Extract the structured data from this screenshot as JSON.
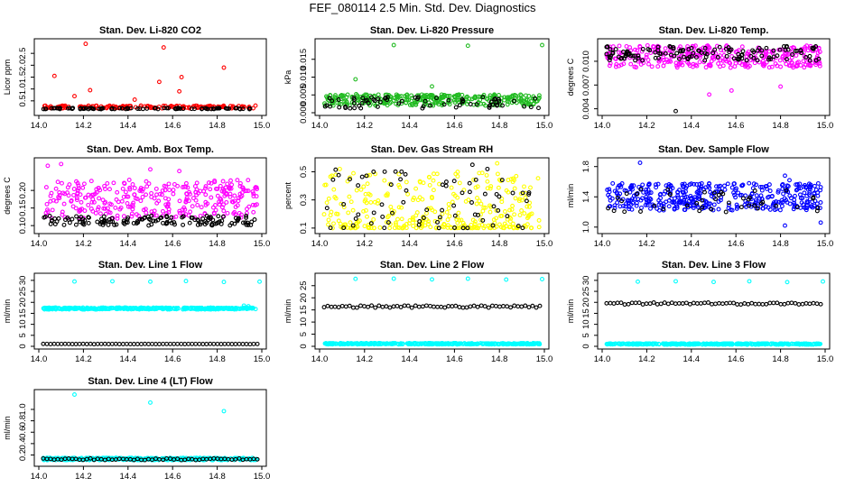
{
  "title": "FEF_080114  2.5 Min. Std. Dev. Diagnostics",
  "colors": {
    "instrument": "#000000",
    "red": "#ff0000",
    "green": "#22bb22",
    "magenta": "#ff00ff",
    "yellow": "#ffff00",
    "blue": "#0000ff",
    "cyan": "#00ffff"
  },
  "chart_data": [
    {
      "type": "scatter",
      "title": "Stan. Dev. Li-820 CO2",
      "ylabel": "Licor ppm",
      "xlim": [
        14.0,
        15.0
      ],
      "ylim": [
        0.0,
        3.0
      ],
      "xticks": [
        "14.0",
        "14.2",
        "14.4",
        "14.6",
        "14.8",
        "15.0"
      ],
      "yticks": [
        {
          "v": 0.5,
          "label": "0.5"
        },
        {
          "v": 1.0,
          "label": "1.0"
        },
        {
          "v": 1.5,
          "label": "1.5"
        },
        {
          "v": 2.0,
          "label": "2.0"
        },
        {
          "v": 2.5,
          "label": "2.5"
        }
      ],
      "series": [
        {
          "name": "primary",
          "color": "#ff0000",
          "n": 160,
          "base": 0.18,
          "spread": 0.12,
          "seed": 11,
          "outliers": [
            [
              14.21,
              2.9
            ],
            [
              14.56,
              2.75
            ],
            [
              14.83,
              1.9
            ],
            [
              14.07,
              1.55
            ],
            [
              14.54,
              1.3
            ],
            [
              14.64,
              1.5
            ],
            [
              14.63,
              0.9
            ],
            [
              14.23,
              0.95
            ],
            [
              14.16,
              0.7
            ],
            [
              14.43,
              0.55
            ]
          ]
        },
        {
          "name": "secondary",
          "color": "#000000",
          "n": 90,
          "base": 0.15,
          "spread": 0.05,
          "seed": 12
        }
      ]
    },
    {
      "type": "scatter",
      "title": "Stan. Dev. Li-820 Pressure",
      "ylabel": "kPa",
      "xlim": [
        14.0,
        15.0
      ],
      "ylim": [
        0.0,
        0.02
      ],
      "xticks": [
        "14.0",
        "14.2",
        "14.4",
        "14.6",
        "14.8",
        "15.0"
      ],
      "yticks": [
        {
          "v": 0.0,
          "label": "0.000"
        },
        {
          "v": 0.005,
          "label": "0.005"
        },
        {
          "v": 0.01,
          "label": "0.010"
        },
        {
          "v": 0.015,
          "label": "0.015"
        }
      ],
      "series": [
        {
          "name": "primary",
          "color": "#22bb22",
          "n": 330,
          "base": 0.002,
          "spread": 0.0032,
          "seed": 21,
          "outliers": [
            [
              14.33,
              0.019
            ],
            [
              14.66,
              0.0188
            ],
            [
              14.99,
              0.019
            ],
            [
              14.16,
              0.0094
            ],
            [
              14.5,
              0.0074
            ]
          ]
        },
        {
          "name": "secondary",
          "color": "#000000",
          "n": 70,
          "base": 0.0012,
          "spread": 0.0032,
          "seed": 22
        }
      ]
    },
    {
      "type": "scatter",
      "title": "Stan. Dev. Li-820 Temp.",
      "ylabel": "degrees C",
      "xlim": [
        14.0,
        15.0
      ],
      "ylim": [
        0.0035,
        0.0125
      ],
      "xticks": [
        "14.0",
        "14.2",
        "14.4",
        "14.6",
        "14.8",
        "15.0"
      ],
      "yticks": [
        {
          "v": 0.004,
          "label": "0.004"
        },
        {
          "v": 0.007,
          "label": "0.007"
        },
        {
          "v": 0.01,
          "label": "0.010"
        }
      ],
      "series": [
        {
          "name": "primary",
          "color": "#ff00ff",
          "n": 330,
          "base": 0.0092,
          "spread": 0.0028,
          "seed": 31,
          "outliers": [
            [
              14.48,
              0.0058
            ],
            [
              14.58,
              0.0063
            ],
            [
              14.8,
              0.0068
            ]
          ]
        },
        {
          "name": "secondary",
          "color": "#000000",
          "n": 130,
          "base": 0.0101,
          "spread": 0.0018,
          "seed": 32,
          "outliers": [
            [
              14.33,
              0.0037
            ],
            [
              14.02,
              0.0118
            ]
          ]
        }
      ]
    },
    {
      "type": "scatter",
      "title": "Stan. Dev. Amb. Box Temp.",
      "ylabel": "degrees C",
      "xlim": [
        14.0,
        15.0
      ],
      "ylim": [
        0.085,
        0.285
      ],
      "xticks": [
        "14.0",
        "14.2",
        "14.4",
        "14.6",
        "14.8",
        "15.0"
      ],
      "yticks": [
        {
          "v": 0.1,
          "label": "0.10"
        },
        {
          "v": 0.15,
          "label": "0.15"
        },
        {
          "v": 0.2,
          "label": "0.20"
        }
      ],
      "series": [
        {
          "name": "primary",
          "color": "#ff00ff",
          "n": 330,
          "base": 0.12,
          "spread": 0.11,
          "seed": 41,
          "outliers": [
            [
              14.04,
              0.27
            ],
            [
              14.1,
              0.275
            ],
            [
              14.63,
              0.255
            ],
            [
              14.5,
              0.26
            ]
          ]
        },
        {
          "name": "secondary",
          "color": "#000000",
          "n": 140,
          "base": 0.1,
          "spread": 0.028,
          "seed": 42
        }
      ]
    },
    {
      "type": "scatter",
      "title": "Stan. Dev. Gas Stream RH",
      "ylabel": "percent",
      "xlim": [
        14.0,
        15.0
      ],
      "ylim": [
        0.08,
        0.58
      ],
      "xticks": [
        "14.0",
        "14.2",
        "14.4",
        "14.6",
        "14.8",
        "15.0"
      ],
      "yticks": [
        {
          "v": 0.1,
          "label": "0.1"
        },
        {
          "v": 0.3,
          "label": "0.3"
        },
        {
          "v": 0.5,
          "label": "0.5"
        }
      ],
      "series": [
        {
          "name": "primary",
          "color": "#ffff00",
          "n": 330,
          "base": 0.1,
          "spread": 0.4,
          "skew": 2.2,
          "seed": 51,
          "outliers": [
            [
              14.79,
              0.56
            ],
            [
              14.09,
              0.52
            ]
          ]
        },
        {
          "name": "secondary",
          "color": "#000000",
          "n": 70,
          "base": 0.1,
          "spread": 0.42,
          "skew": 1.6,
          "seed": 52,
          "outliers": [
            [
              14.24,
              0.5
            ],
            [
              14.68,
              0.55
            ]
          ]
        }
      ]
    },
    {
      "type": "scatter",
      "title": "Stan. Dev. Sample Flow",
      "ylabel": "ml/min",
      "xlim": [
        14.0,
        15.0
      ],
      "ylim": [
        0.95,
        1.88
      ],
      "xticks": [
        "14.0",
        "14.2",
        "14.4",
        "14.6",
        "14.8",
        "15.0"
      ],
      "yticks": [
        {
          "v": 1.0,
          "label": "1.0"
        },
        {
          "v": 1.4,
          "label": "1.4"
        },
        {
          "v": 1.8,
          "label": "1.8"
        }
      ],
      "series": [
        {
          "name": "primary",
          "color": "#0000ff",
          "n": 400,
          "base": 1.22,
          "spread": 0.36,
          "seed": 61,
          "outliers": [
            [
              14.17,
              1.85
            ],
            [
              14.82,
              1.68
            ],
            [
              14.84,
              1.62
            ],
            [
              14.82,
              1.02
            ],
            [
              14.98,
              1.06
            ]
          ]
        },
        {
          "name": "secondary",
          "color": "#000000",
          "n": 45,
          "base": 1.2,
          "spread": 0.3,
          "seed": 62
        }
      ]
    },
    {
      "type": "scatter",
      "title": "Stan. Dev. Line 1 Flow",
      "ylabel": "ml/min",
      "xlim": [
        14.0,
        15.0
      ],
      "ylim": [
        0.0,
        32.0
      ],
      "xticks": [
        "14.0",
        "14.2",
        "14.4",
        "14.6",
        "14.8",
        "15.0"
      ],
      "yticks": [
        {
          "v": 0,
          "label": "0"
        },
        {
          "v": 5,
          "label": "5"
        },
        {
          "v": 10,
          "label": "10"
        },
        {
          "v": 15,
          "label": "15"
        },
        {
          "v": 20,
          "label": "20"
        },
        {
          "v": 25,
          "label": "25"
        },
        {
          "v": 30,
          "label": "30"
        }
      ],
      "series": [
        {
          "name": "primary",
          "color": "#00ffff",
          "n": 380,
          "base": 16.8,
          "spread": 0.8,
          "seed": 71,
          "outliers": [
            [
              14.16,
              29.5
            ],
            [
              14.33,
              29.6
            ],
            [
              14.5,
              29.4
            ],
            [
              14.66,
              29.7
            ],
            [
              14.83,
              29.3
            ],
            [
              14.99,
              29.4
            ],
            [
              14.92,
              18.5
            ],
            [
              14.94,
              18.2
            ]
          ]
        },
        {
          "name": "secondary",
          "color": "#000000",
          "n": 60,
          "base": 1.0,
          "spread": 0.1,
          "seed": 72,
          "even": true
        }
      ]
    },
    {
      "type": "scatter",
      "title": "Stan. Dev. Line 2 Flow",
      "ylabel": "ml/min",
      "xlim": [
        14.0,
        15.0
      ],
      "ylim": [
        0.0,
        29.0
      ],
      "xticks": [
        "14.0",
        "14.2",
        "14.4",
        "14.6",
        "14.8",
        "15.0"
      ],
      "yticks": [
        {
          "v": 0,
          "label": "0"
        },
        {
          "v": 5,
          "label": "5"
        },
        {
          "v": 10,
          "label": "10"
        },
        {
          "v": 15,
          "label": "15"
        },
        {
          "v": 20,
          "label": "20"
        },
        {
          "v": 25,
          "label": "25"
        }
      ],
      "series": [
        {
          "name": "primary",
          "color": "#00ffff",
          "n": 380,
          "base": 0.8,
          "spread": 0.5,
          "seed": 81,
          "outliers": [
            [
              14.16,
              27.8
            ],
            [
              14.33,
              27.9
            ],
            [
              14.5,
              27.6
            ],
            [
              14.66,
              27.9
            ],
            [
              14.83,
              27.5
            ],
            [
              14.99,
              27.7
            ]
          ]
        },
        {
          "name": "secondary",
          "color": "#000000",
          "n": 60,
          "base": 15.9,
          "spread": 0.9,
          "seed": 82,
          "even": true
        }
      ]
    },
    {
      "type": "scatter",
      "title": "Stan. Dev. Line 3 Flow",
      "ylabel": "ml/min",
      "xlim": [
        14.0,
        15.0
      ],
      "ylim": [
        0.0,
        32.0
      ],
      "xticks": [
        "14.0",
        "14.2",
        "14.4",
        "14.6",
        "14.8",
        "15.0"
      ],
      "yticks": [
        {
          "v": 0,
          "label": "0"
        },
        {
          "v": 5,
          "label": "5"
        },
        {
          "v": 10,
          "label": "10"
        },
        {
          "v": 15,
          "label": "15"
        },
        {
          "v": 20,
          "label": "20"
        },
        {
          "v": 25,
          "label": "25"
        },
        {
          "v": 30,
          "label": "30"
        }
      ],
      "series": [
        {
          "name": "primary",
          "color": "#00ffff",
          "n": 380,
          "base": 0.8,
          "spread": 0.5,
          "seed": 91,
          "outliers": [
            [
              14.16,
              29.4
            ],
            [
              14.33,
              29.6
            ],
            [
              14.5,
              29.3
            ],
            [
              14.66,
              29.6
            ],
            [
              14.83,
              29.2
            ],
            [
              14.99,
              29.5
            ]
          ]
        },
        {
          "name": "secondary",
          "color": "#000000",
          "n": 60,
          "base": 19.0,
          "spread": 0.9,
          "seed": 92,
          "even": true
        }
      ]
    },
    {
      "type": "scatter",
      "title": "Stan. Dev. Line 4 (LT) Flow",
      "ylabel": "ml/min",
      "xlim": [
        14.0,
        15.0
      ],
      "ylim": [
        0.05,
        1.3
      ],
      "xticks": [
        "14.0",
        "14.2",
        "14.4",
        "14.6",
        "14.8",
        "15.0"
      ],
      "yticks": [
        {
          "v": 0.2,
          "label": "0.2"
        },
        {
          "v": 0.4,
          "label": "0.4"
        },
        {
          "v": 0.6,
          "label": "0.6"
        },
        {
          "v": 0.8,
          "label": "0.8"
        },
        {
          "v": 1.0,
          "label": "1.0"
        }
      ],
      "series": [
        {
          "name": "primary",
          "color": "#00ffff",
          "n": 380,
          "base": 0.11,
          "spread": 0.04,
          "seed": 101,
          "outliers": [
            [
              14.16,
              1.26
            ],
            [
              14.5,
              1.12
            ],
            [
              14.83,
              0.97
            ]
          ]
        },
        {
          "name": "secondary",
          "color": "#000000",
          "n": 60,
          "base": 0.11,
          "spread": 0.03,
          "seed": 102,
          "even": true
        }
      ]
    }
  ]
}
